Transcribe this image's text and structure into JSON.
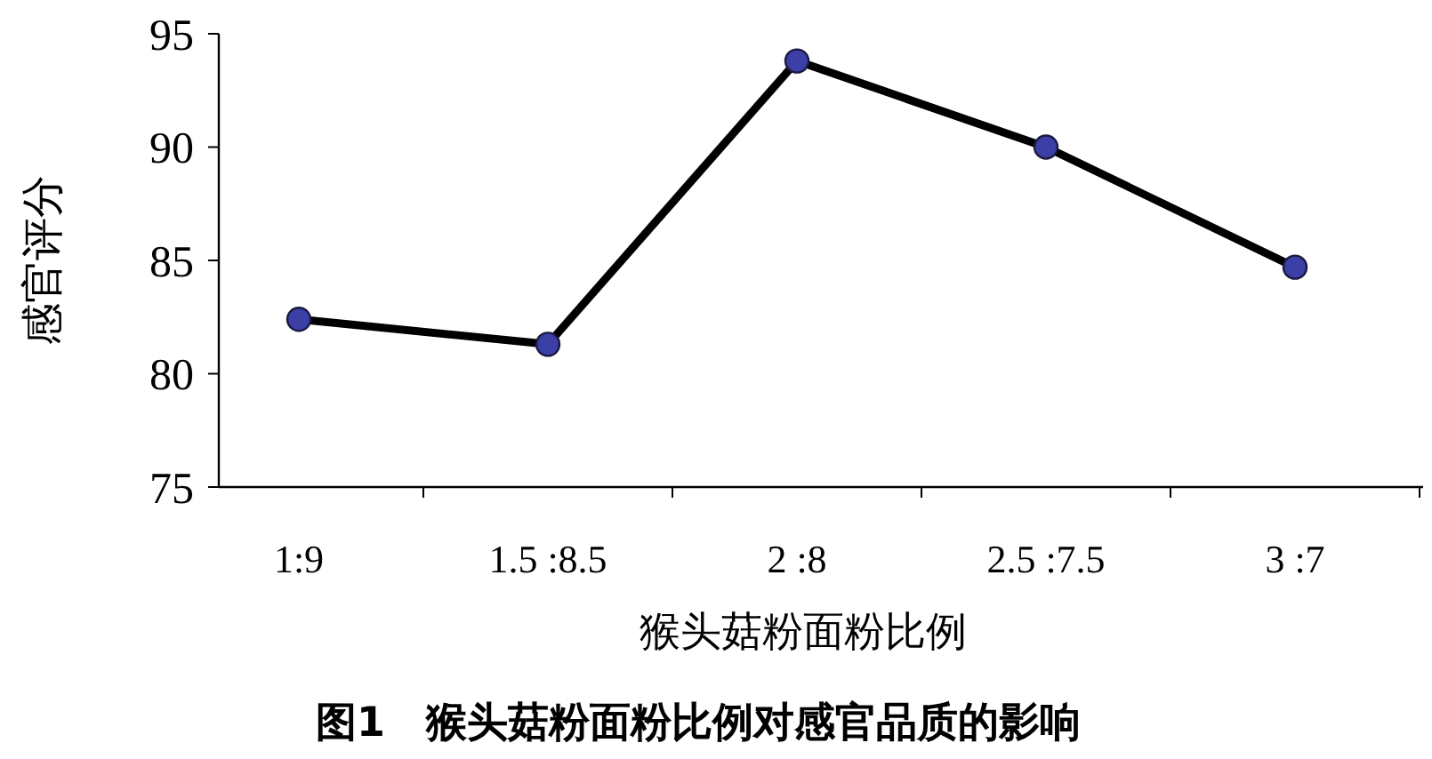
{
  "chart_data": {
    "type": "line",
    "title": "图1　猴头菇粉面粉比例对感官品质的影响",
    "xlabel": "猴头菇粉面粉比例",
    "ylabel": "感官评分",
    "categories": [
      "1:9",
      "1.5 :8.5",
      "2 :8",
      "2.5 :7.5",
      "3 :7"
    ],
    "series": [
      {
        "color": "#000000",
        "values": [
          82.4,
          81.3,
          93.8,
          90.0,
          84.7
        ]
      }
    ],
    "marker": "circle",
    "line_style": "solid",
    "grid": false,
    "ylim": [
      75,
      95
    ],
    "yticks": [
      75,
      80,
      85,
      90,
      95
    ]
  }
}
